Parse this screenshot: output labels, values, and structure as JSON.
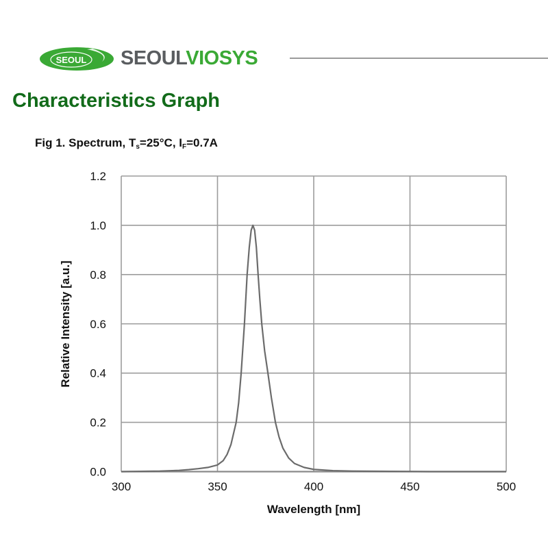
{
  "header": {
    "logo_oval_text": "SEOUL",
    "brand_prefix": "SEOUL",
    "brand_suffix": "VIOSYS",
    "brand_green": "#3aa935",
    "brand_gray": "#5a5d60"
  },
  "section": {
    "title": "Characteristics Graph",
    "title_color": "#126b1a"
  },
  "figure": {
    "caption_prefix": "Fig 1. Spectrum, T",
    "caption_ts_sub": "s",
    "caption_mid": "=25°C, I",
    "caption_if_sub": "F",
    "caption_suffix": "=0.7A"
  },
  "chart_data": {
    "type": "line",
    "title": "Fig 1. Spectrum, Ts=25°C, IF=0.7A",
    "xlabel": "Wavelength [nm]",
    "ylabel": "Relative Intensity [a.u.]",
    "xlim": [
      300,
      500
    ],
    "ylim": [
      0,
      1.2
    ],
    "xticks": [
      300,
      350,
      400,
      450,
      500
    ],
    "yticks": [
      0.0,
      0.2,
      0.4,
      0.6,
      0.8,
      1.0,
      1.2
    ],
    "xtick_labels": [
      "300",
      "350",
      "400",
      "450",
      "500"
    ],
    "ytick_labels": [
      "0.0",
      "0.2",
      "0.4",
      "0.6",
      "0.8",
      "1.0",
      "1.2"
    ],
    "grid": true,
    "legend": null,
    "peak_wavelength_nm": 368.4,
    "series": [
      {
        "name": "Spectrum",
        "color": "#6b6b6b",
        "x": [
          300,
          310,
          320,
          330,
          335,
          340,
          345,
          350,
          353,
          355,
          357,
          359.7,
          361,
          362.3,
          364,
          365.4,
          366.5,
          367.5,
          368.4,
          369.3,
          370.2,
          371.1,
          372,
          373,
          374.5,
          376.2,
          378,
          380.1,
          382,
          384,
          387,
          390,
          395,
          400,
          410,
          420,
          440,
          460,
          480,
          500
        ],
        "y": [
          0.0,
          0.001,
          0.002,
          0.005,
          0.008,
          0.012,
          0.017,
          0.027,
          0.045,
          0.07,
          0.11,
          0.2,
          0.28,
          0.4,
          0.6,
          0.8,
          0.91,
          0.98,
          1.0,
          0.98,
          0.91,
          0.8,
          0.7,
          0.6,
          0.49,
          0.4,
          0.3,
          0.2,
          0.14,
          0.095,
          0.055,
          0.033,
          0.017,
          0.009,
          0.004,
          0.002,
          0.001,
          0.0,
          0.0,
          0.0
        ]
      }
    ]
  }
}
